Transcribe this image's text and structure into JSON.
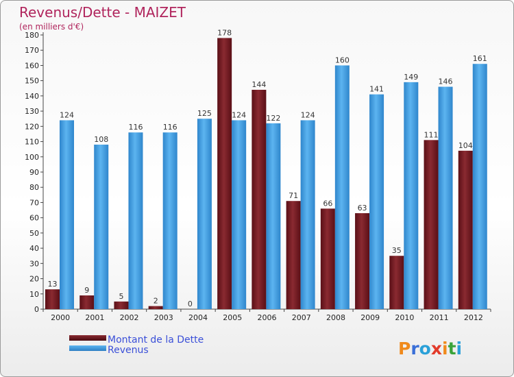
{
  "logo_text": "Proxiti",
  "chart_data": {
    "type": "bar",
    "title": "Revenus/Dette - MAIZET",
    "subtitle": "(en milliers d'€)",
    "categories": [
      "2000",
      "2001",
      "2002",
      "2003",
      "2004",
      "2005",
      "2006",
      "2007",
      "2008",
      "2009",
      "2010",
      "2011",
      "2012"
    ],
    "series": [
      {
        "name": "Montant de la Dette",
        "color": "#7a1d24",
        "values": [
          13,
          9,
          5,
          2,
          0,
          178,
          144,
          71,
          66,
          63,
          35,
          111,
          104
        ]
      },
      {
        "name": "Revenus",
        "color": "#3a96db",
        "values": [
          124,
          108,
          116,
          116,
          125,
          124,
          122,
          124,
          160,
          141,
          149,
          146,
          161
        ]
      }
    ],
    "ylim": [
      0,
      180
    ],
    "yticks": [
      0,
      10,
      20,
      30,
      40,
      50,
      60,
      70,
      80,
      90,
      100,
      110,
      120,
      130,
      140,
      150,
      160,
      170,
      180
    ],
    "grid": false,
    "legend_position": "bottom-left",
    "xlabel": "",
    "ylabel": ""
  }
}
